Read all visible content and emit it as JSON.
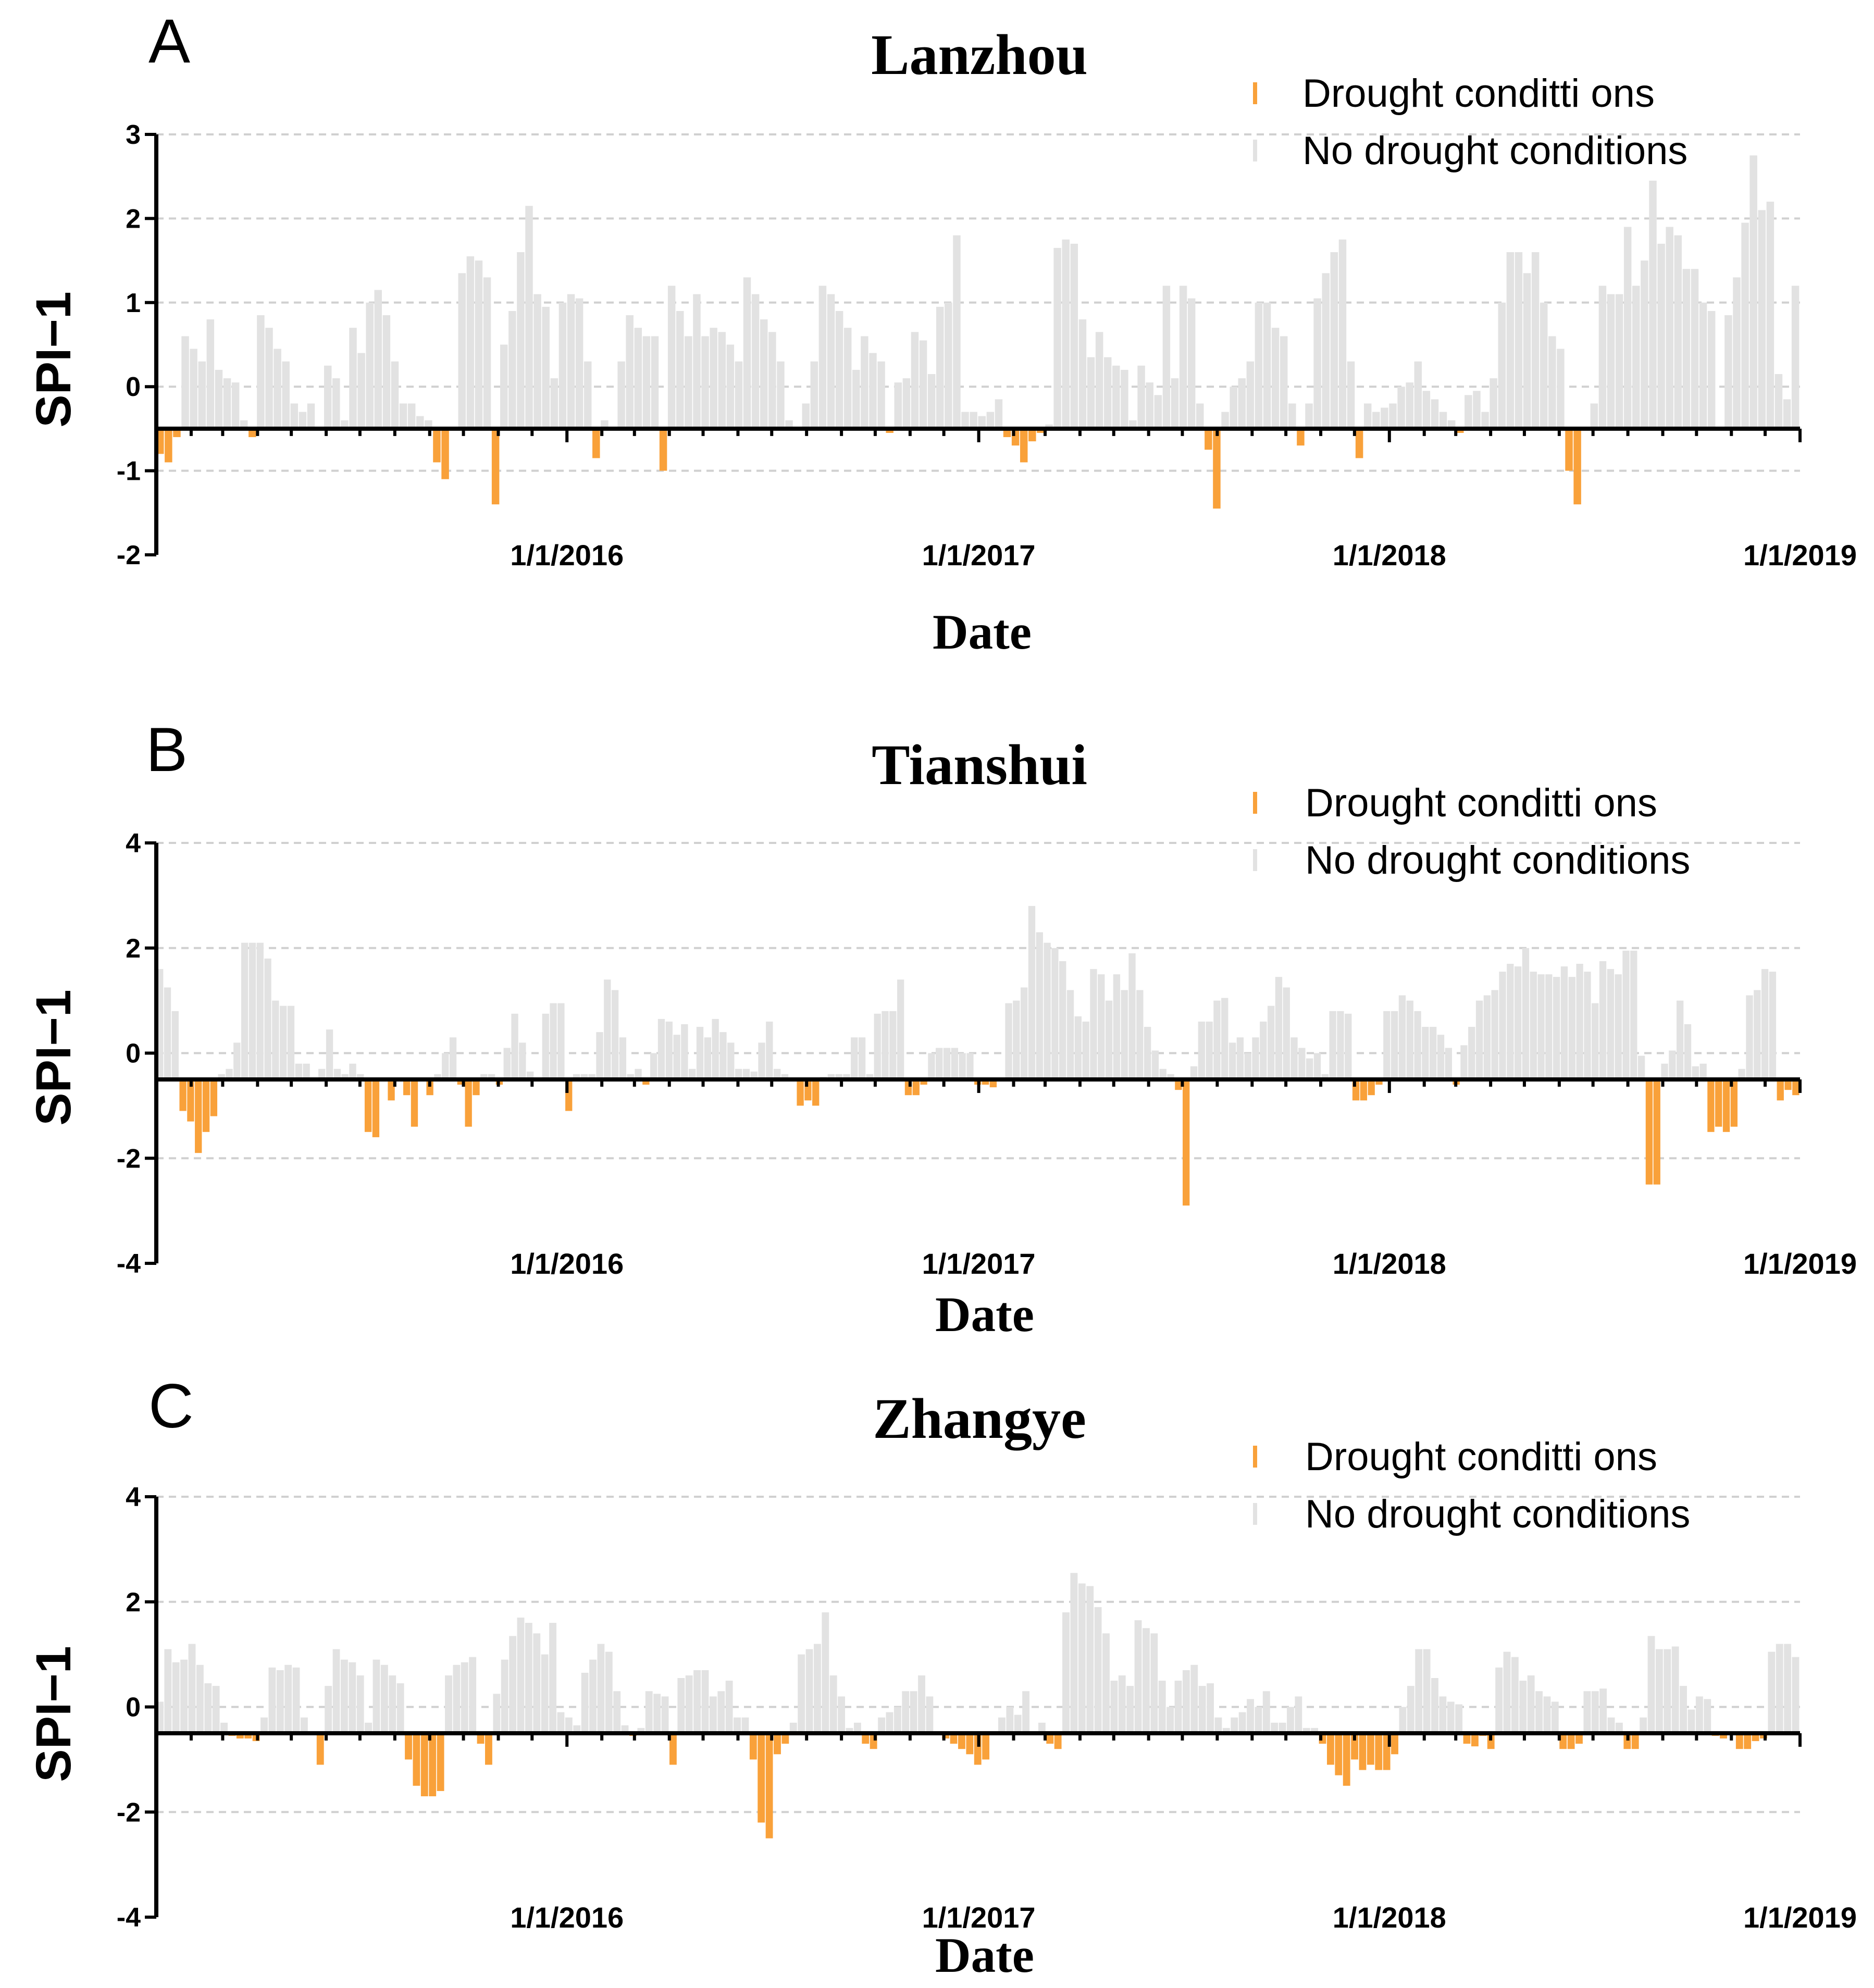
{
  "colors": {
    "drought": "#f9a13a",
    "no_drought": "#e2e2e2",
    "axis": "#000000",
    "grid": "#d0d0d0"
  },
  "chart_data": [
    {
      "type": "bar",
      "panel": "A",
      "title": "Lanzhou",
      "xlabel": "Date",
      "ylabel": "SPI−1",
      "baseline": -0.5,
      "ylim": [
        -2,
        3
      ],
      "yticks": [
        -2,
        -1,
        0,
        1,
        2,
        3
      ],
      "ytick_labels": [
        "-2",
        "-1",
        "0",
        "1",
        "2",
        "3"
      ],
      "x_start": "2015-01-01",
      "x_end": "2019-01-01",
      "xticks": [
        "1/1/2016",
        "1/1/2017",
        "1/1/2018",
        "1/1/2019"
      ],
      "legend": {
        "drought": "Drought conditti ons",
        "no_drought": "No drought conditions"
      },
      "values": [
        -0.8,
        -0.9,
        -0.6,
        0.6,
        0.45,
        0.3,
        0.8,
        0.2,
        0.1,
        0.05,
        -0.4,
        -0.6,
        0.85,
        0.7,
        0.45,
        0.3,
        -0.2,
        -0.3,
        -0.2,
        -0.5,
        0.25,
        0.1,
        -0.4,
        0.7,
        0.4,
        1.0,
        1.15,
        0.85,
        0.3,
        -0.2,
        -0.2,
        -0.35,
        -0.4,
        -0.9,
        -1.1,
        -0.5,
        1.35,
        1.55,
        1.5,
        1.3,
        -1.4,
        0.5,
        0.9,
        1.6,
        2.15,
        1.1,
        0.95,
        0.1,
        1.0,
        1.1,
        1.05,
        0.3,
        -0.85,
        -0.4,
        -0.5,
        0.3,
        0.85,
        0.7,
        0.6,
        0.6,
        -1.0,
        1.2,
        0.9,
        0.6,
        1.1,
        0.6,
        0.7,
        0.65,
        0.5,
        0.3,
        1.3,
        1.1,
        0.8,
        0.65,
        0.3,
        -0.4,
        -0.5,
        -0.2,
        0.3,
        1.2,
        1.1,
        0.9,
        0.7,
        0.2,
        0.6,
        0.4,
        0.3,
        -0.55,
        0.05,
        0.1,
        0.65,
        0.55,
        0.15,
        0.95,
        1.0,
        1.8,
        -0.3,
        -0.3,
        -0.35,
        -0.3,
        -0.15,
        -0.6,
        -0.7,
        -0.9,
        -0.65,
        -0.55,
        -0.45,
        1.65,
        1.75,
        1.7,
        0.8,
        0.35,
        0.65,
        0.35,
        0.25,
        0.2,
        -0.4,
        0.25,
        0.05,
        -0.1,
        1.2,
        0.1,
        1.2,
        1.05,
        -0.2,
        -0.75,
        -1.45,
        -0.3,
        0.0,
        0.1,
        0.3,
        1.0,
        1.0,
        0.7,
        0.6,
        -0.2,
        -0.7,
        -0.2,
        1.05,
        1.35,
        1.6,
        1.75,
        0.3,
        -0.85,
        -0.2,
        -0.3,
        -0.25,
        -0.2,
        0.0,
        0.05,
        0.3,
        -0.05,
        -0.15,
        -0.3,
        -0.4,
        -0.55,
        -0.1,
        -0.05,
        -0.3,
        0.1,
        1.0,
        1.6,
        1.6,
        1.35,
        1.6,
        1.0,
        0.6,
        0.45,
        -1.0,
        -1.4,
        -0.5,
        -0.2,
        1.2,
        1.1,
        1.1,
        1.9,
        1.2,
        1.5,
        2.45,
        1.7,
        1.9,
        1.8,
        1.4,
        1.4,
        1.0,
        0.9,
        -0.5,
        0.85,
        1.3,
        1.95,
        2.75,
        2.1,
        2.2,
        0.15,
        -0.15,
        1.2
      ]
    },
    {
      "type": "bar",
      "panel": "B",
      "title": "Tianshui",
      "xlabel": "Date",
      "ylabel": "SPI−1",
      "baseline": -0.5,
      "ylim": [
        -4,
        4
      ],
      "yticks": [
        -4,
        -2,
        0,
        2,
        4
      ],
      "ytick_labels": [
        "-4",
        "-2",
        "0",
        "2",
        "4"
      ],
      "x_start": "2015-01-01",
      "x_end": "2019-01-01",
      "xticks": [
        "1/1/2016",
        "1/1/2017",
        "1/1/2018",
        "1/1/2019"
      ],
      "legend": {
        "drought": "Drought conditti ons",
        "no_drought": "No drought conditions"
      },
      "values": [
        1.6,
        1.25,
        0.8,
        -1.1,
        -1.3,
        -1.9,
        -1.5,
        -1.2,
        -0.4,
        -0.3,
        0.2,
        2.1,
        2.1,
        2.1,
        1.8,
        1.0,
        0.9,
        0.9,
        -0.2,
        -0.2,
        -0.5,
        -0.3,
        0.45,
        -0.3,
        -0.4,
        -0.2,
        -0.4,
        -1.5,
        -1.6,
        -0.5,
        -0.9,
        -0.5,
        -0.8,
        -1.4,
        -0.5,
        -0.8,
        -0.4,
        0.0,
        0.3,
        -0.6,
        -1.4,
        -0.8,
        -0.4,
        -0.4,
        -0.6,
        0.1,
        0.75,
        0.2,
        -0.35,
        -0.5,
        0.75,
        0.95,
        0.95,
        -1.1,
        -0.4,
        -0.4,
        -0.4,
        0.4,
        1.4,
        1.2,
        0.3,
        -0.4,
        -0.3,
        -0.6,
        0.0,
        0.65,
        0.6,
        0.35,
        0.55,
        -0.3,
        0.5,
        0.3,
        0.65,
        0.4,
        0.2,
        -0.3,
        -0.3,
        -0.35,
        0.2,
        0.6,
        -0.3,
        -0.4,
        -0.5,
        -1.0,
        -0.9,
        -1.0,
        -0.45,
        -0.4,
        -0.4,
        -0.4,
        0.3,
        0.3,
        -0.4,
        0.75,
        0.8,
        0.8,
        1.4,
        -0.8,
        -0.8,
        -0.6,
        0.0,
        0.1,
        0.1,
        0.1,
        0.0,
        0.0,
        -0.6,
        -0.6,
        -0.65,
        -0.5,
        0.95,
        1.0,
        1.25,
        2.8,
        2.3,
        2.1,
        2.0,
        1.75,
        1.2,
        0.7,
        0.6,
        1.6,
        1.5,
        1.0,
        1.5,
        1.2,
        1.9,
        1.2,
        0.5,
        0.05,
        -0.3,
        -0.4,
        -0.7,
        -2.9,
        -0.25,
        0.6,
        0.6,
        1.0,
        1.05,
        0.2,
        0.3,
        0.0,
        0.3,
        0.6,
        0.9,
        1.45,
        1.25,
        0.3,
        0.1,
        -0.1,
        0.0,
        -0.4,
        0.8,
        0.8,
        0.75,
        -0.9,
        -0.9,
        -0.8,
        -0.6,
        0.8,
        0.8,
        1.1,
        1.0,
        0.8,
        0.5,
        0.5,
        0.35,
        0.1,
        -0.6,
        0.15,
        0.5,
        1.0,
        1.1,
        1.2,
        1.55,
        1.7,
        1.65,
        2.0,
        1.55,
        1.5,
        1.5,
        1.45,
        1.65,
        1.45,
        1.7,
        1.55,
        0.95,
        1.75,
        1.6,
        1.5,
        1.95,
        1.95,
        -0.05,
        -2.5,
        -2.5,
        -0.2,
        0.05,
        1.0,
        0.55,
        -0.25,
        -0.2,
        -1.5,
        -1.4,
        -1.5,
        -1.4,
        -0.3,
        1.1,
        1.2,
        1.6,
        1.55,
        -0.9,
        -0.7,
        -0.8
      ]
    },
    {
      "type": "bar",
      "panel": "C",
      "title": "Zhangye",
      "xlabel": "Date",
      "ylabel": "SPI−1",
      "baseline": -0.5,
      "ylim": [
        -4,
        4
      ],
      "yticks": [
        -4,
        -2,
        0,
        2,
        4
      ],
      "ytick_labels": [
        "-4",
        "-2",
        "0",
        "2",
        "4"
      ],
      "x_start": "2015-01-01",
      "x_end": "2019-01-01",
      "xticks": [
        "1/1/2016",
        "1/1/2017",
        "1/1/2018",
        "1/1/2019"
      ],
      "legend": {
        "drought": "Drought conditti ons",
        "no_drought": "No drought conditions"
      },
      "values": [
        0.1,
        1.1,
        0.85,
        0.9,
        1.2,
        0.8,
        0.45,
        0.4,
        -0.3,
        -0.55,
        -0.6,
        -0.6,
        -0.65,
        -0.2,
        0.75,
        0.7,
        0.8,
        0.75,
        -0.2,
        -0.5,
        -1.1,
        0.4,
        1.1,
        0.9,
        0.85,
        0.6,
        -0.3,
        0.9,
        0.8,
        0.6,
        0.45,
        -1.0,
        -1.5,
        -1.7,
        -1.7,
        -1.6,
        0.6,
        0.8,
        0.85,
        0.95,
        -0.7,
        -1.1,
        0.25,
        0.9,
        1.35,
        1.7,
        1.6,
        1.4,
        1.0,
        1.6,
        -0.1,
        -0.2,
        -0.35,
        0.65,
        0.9,
        1.2,
        1.05,
        0.3,
        -0.35,
        -0.55,
        -0.4,
        0.3,
        0.25,
        0.2,
        -1.1,
        0.55,
        0.6,
        0.7,
        0.7,
        0.2,
        0.3,
        0.5,
        -0.2,
        -0.2,
        -1.0,
        -2.2,
        -2.5,
        -0.9,
        -0.7,
        -0.3,
        1.0,
        1.1,
        1.2,
        1.8,
        0.6,
        0.2,
        -0.4,
        -0.3,
        -0.7,
        -0.8,
        -0.2,
        -0.1,
        0.0,
        0.3,
        0.3,
        0.6,
        0.2,
        -0.5,
        -0.6,
        -0.7,
        -0.8,
        -0.9,
        -1.1,
        -1.0,
        -0.5,
        -0.2,
        0.0,
        -0.15,
        0.3,
        -0.5,
        -0.3,
        -0.7,
        -0.8,
        1.8,
        2.55,
        2.35,
        2.3,
        1.9,
        1.4,
        0.5,
        0.6,
        0.4,
        1.65,
        1.5,
        1.4,
        0.5,
        0.0,
        0.5,
        0.7,
        0.8,
        0.4,
        0.45,
        -0.2,
        -0.4,
        -0.2,
        -0.1,
        0.15,
        0.0,
        0.3,
        -0.3,
        -0.3,
        0.0,
        0.2,
        -0.4,
        -0.4,
        -0.7,
        -1.1,
        -1.3,
        -1.5,
        -1.0,
        -1.2,
        -1.1,
        -1.2,
        -1.2,
        -0.9,
        0.0,
        0.4,
        1.1,
        1.1,
        0.55,
        0.2,
        0.1,
        0.05,
        -0.7,
        -0.75,
        -0.55,
        -0.8,
        0.75,
        1.05,
        0.95,
        0.5,
        0.6,
        0.3,
        0.2,
        0.1,
        -0.8,
        -0.8,
        -0.7,
        0.3,
        0.3,
        0.35,
        -0.2,
        -0.3,
        -0.8,
        -0.8,
        -0.2,
        1.35,
        1.1,
        1.1,
        1.15,
        0.4,
        -0.05,
        0.2,
        0.15,
        -0.55,
        -0.6,
        -0.5,
        -0.8,
        -0.8,
        -0.65,
        -0.6,
        1.05,
        1.2,
        1.2,
        0.95
      ]
    }
  ]
}
